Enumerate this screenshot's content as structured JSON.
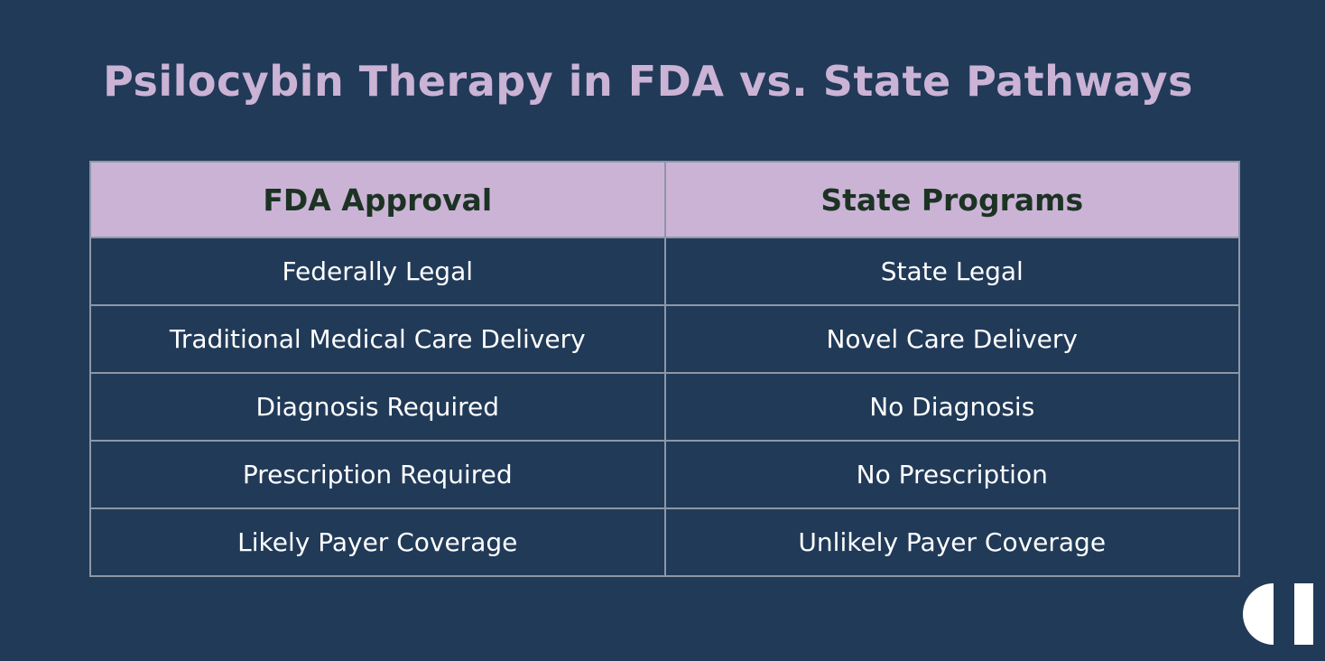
{
  "slide": {
    "title": "Psilocybin Therapy in FDA vs. State Pathways"
  },
  "table": {
    "headers": [
      "FDA Approval",
      "State Programs"
    ],
    "rows": [
      [
        "Federally Legal",
        "State Legal"
      ],
      [
        "Traditional Medical Care Delivery",
        "Novel Care Delivery"
      ],
      [
        "Diagnosis Required",
        "No Diagnosis"
      ],
      [
        "Prescription Required",
        "No Prescription"
      ],
      [
        "Likely Payer Coverage",
        "Unlikely Payer Coverage"
      ]
    ]
  },
  "colors": {
    "background": "#213a58",
    "title": "#cbb3d6",
    "header_background": "#cbb3d6",
    "header_text": "#1c3324",
    "cell_text": "#ffffff",
    "border": "#8d97a6",
    "logo": "#ffffff"
  },
  "icons": {
    "logo": "brand-logo-icon"
  }
}
